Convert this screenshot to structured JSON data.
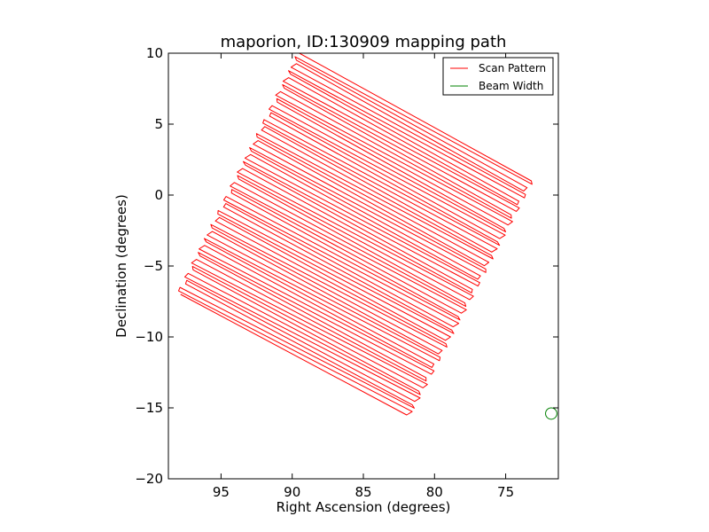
{
  "chart_data": {
    "type": "line",
    "title": "maporion, ID:130909 mapping path",
    "xlabel": "Right Ascension (degrees)",
    "ylabel": "Declination (degrees)",
    "xlim": [
      98.7,
      71.3
    ],
    "ylim": [
      -20,
      10
    ],
    "x_inverted": true,
    "xticks": [
      95,
      90,
      85,
      80,
      75
    ],
    "xtick_labels": [
      "95",
      "90",
      "85",
      "80",
      "75"
    ],
    "yticks": [
      10,
      5,
      0,
      -5,
      -10,
      -15,
      -20
    ],
    "ytick_labels": [
      "10",
      "5",
      "0",
      "−5",
      "−10",
      "−15",
      "−20"
    ],
    "grid": false,
    "legend": {
      "placement": "top-right",
      "entries": [
        {
          "label": "Scan Pattern",
          "color": "#ff0000"
        },
        {
          "label": "Beam Width",
          "color": "#008000"
        }
      ]
    },
    "series": [
      {
        "name": "Scan Pattern",
        "color": "#ff0000",
        "style": "boustrophedon raster",
        "corners": {
          "top_left": [
            89.5,
            10
          ],
          "top_right": [
            73.2,
            1.0
          ],
          "bottom_right": [
            81.8,
            -15.5
          ],
          "bottom_left": [
            98.0,
            -7.0
          ]
        },
        "passes": 70
      },
      {
        "name": "Beam Width",
        "color": "#008000",
        "shape": "circle",
        "center": [
          71.8,
          -15.4
        ],
        "radius_deg": 0.4
      }
    ]
  }
}
